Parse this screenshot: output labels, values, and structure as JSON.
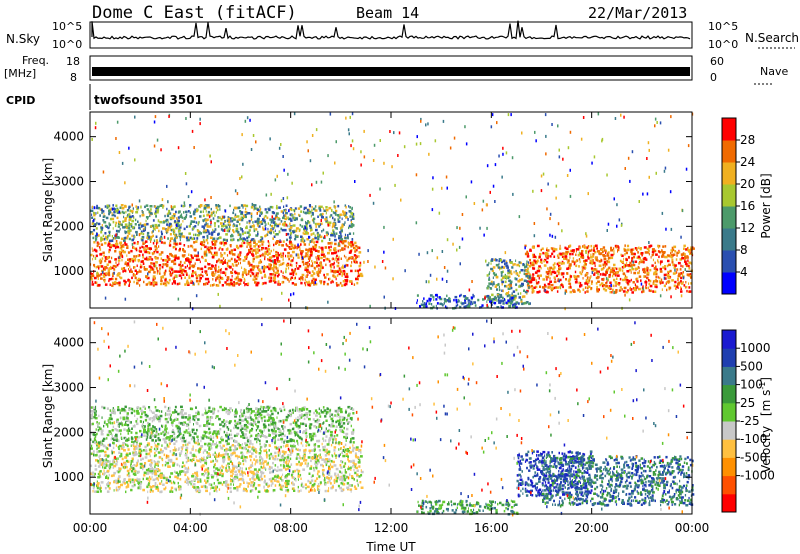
{
  "header": {
    "station": "Dome C East (fitACF)",
    "beam": "Beam 14",
    "date": "22/Mar/2013"
  },
  "top_panels": {
    "nsky_label": "N.Sky",
    "nsky_ticks": [
      "10^5",
      "10^0"
    ],
    "nsearch_label": "N.Search",
    "nsearch_ticks": [
      "10^5",
      "10^0"
    ],
    "freq_label": "Freq.",
    "freq_unit": "[MHz]",
    "freq_ticks": [
      "18",
      "8"
    ],
    "nave_label": "Nave",
    "nave_ticks": [
      "60",
      "0"
    ],
    "cpid_label": "CPID",
    "cpid_value": "twofsound 3501"
  },
  "colors": {
    "power_scale": [
      "#0000ff",
      "#2a4fb0",
      "#3a7a8a",
      "#4c9a6a",
      "#a8c830",
      "#f0b020",
      "#f06a00",
      "#ff0000"
    ],
    "velocity_scale": [
      "#ff0000",
      "#ff5000",
      "#ff9000",
      "#ffc040",
      "#c8c8c8",
      "#60c830",
      "#3a9a3a",
      "#3a7a8a",
      "#1f3fb0",
      "#1a1ad0"
    ]
  },
  "chart_data": [
    {
      "type": "heatmap",
      "title": "",
      "xlabel": "",
      "ylabel": "Slant Range [km]",
      "x_ticks": [
        "00:00",
        "04:00",
        "08:00",
        "12:00",
        "16:00",
        "20:00",
        "00:00"
      ],
      "y_ticks": [
        "1000",
        "2000",
        "3000",
        "4000"
      ],
      "xlim_hours": [
        0,
        24
      ],
      "ylim_km": [
        180,
        4550
      ],
      "colorbar": {
        "label": "Power [dB]",
        "ticks": [
          "28",
          "24",
          "20",
          "16",
          "12",
          "8",
          "4"
        ],
        "range": [
          0,
          32
        ]
      },
      "echo_regions_hours_km": [
        {
          "x": [
            0.0,
            10.8
          ],
          "y": [
            700,
            1700
          ],
          "value": "high"
        },
        {
          "x": [
            0.0,
            10.5
          ],
          "y": [
            1700,
            2500
          ],
          "value": "medium"
        },
        {
          "x": [
            17.3,
            24.0
          ],
          "y": [
            550,
            1600
          ],
          "value": "high"
        },
        {
          "x": [
            15.8,
            17.5
          ],
          "y": [
            300,
            1300
          ],
          "value": "medium"
        },
        {
          "x": [
            13.0,
            17.0
          ],
          "y": [
            200,
            500
          ],
          "value": "low"
        }
      ]
    },
    {
      "type": "heatmap",
      "title": "",
      "xlabel": "Time UT",
      "ylabel": "Slant Range [km]",
      "x_ticks": [
        "00:00",
        "04:00",
        "08:00",
        "12:00",
        "16:00",
        "20:00",
        "00:00"
      ],
      "y_ticks": [
        "1000",
        "2000",
        "3000",
        "4000"
      ],
      "xlim_hours": [
        0,
        24
      ],
      "ylim_km": [
        180,
        4550
      ],
      "colorbar": {
        "label": "Velocity",
        "unit_prefix": "[m s",
        "unit_sup": "-1",
        "unit_suffix": "]",
        "ticks": [
          "1000",
          "500",
          "100",
          "25",
          "-25",
          "-100",
          "-500",
          "-1000"
        ]
      },
      "echo_regions_hours_km": [
        {
          "x": [
            0.0,
            10.8
          ],
          "y": [
            700,
            1800
          ],
          "value": "-100"
        },
        {
          "x": [
            0.0,
            10.5
          ],
          "y": [
            1800,
            2600
          ],
          "value": "-25"
        },
        {
          "x": [
            17.0,
            20.0
          ],
          "y": [
            600,
            1600
          ],
          "value": "500"
        },
        {
          "x": [
            18.0,
            24.0
          ],
          "y": [
            400,
            1500
          ],
          "value": "100"
        },
        {
          "x": [
            13.0,
            17.0
          ],
          "y": [
            200,
            500
          ],
          "value": "25"
        }
      ]
    }
  ]
}
